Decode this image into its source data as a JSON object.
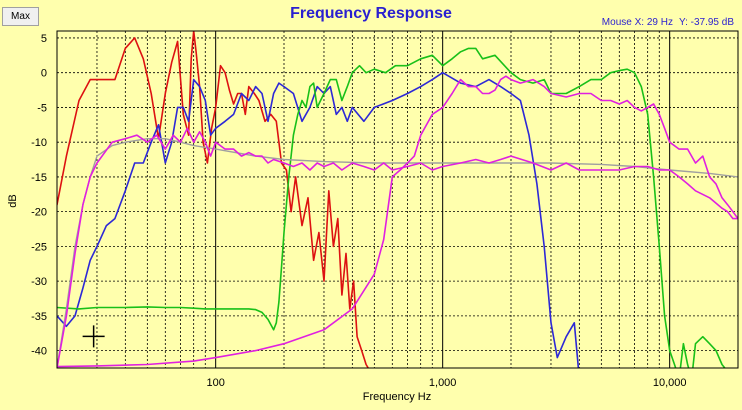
{
  "window": {
    "max_button": "Max",
    "mouse_readout": {
      "x": "Mouse X: 29 Hz",
      "y": "Y: -37.95 dB"
    }
  },
  "chart_data": {
    "type": "line",
    "title": "Frequency Response",
    "xlabel": "Frequency Hz",
    "ylabel": "dB",
    "xscale": "log",
    "xlim": [
      20,
      20000
    ],
    "ylim": [
      -42.5,
      6
    ],
    "yticks": [
      5,
      0,
      -5,
      -10,
      -15,
      -20,
      -25,
      -30,
      -35,
      -40
    ],
    "xticks": [
      {
        "value": 100,
        "label": "100"
      },
      {
        "value": 1000,
        "label": "1,000"
      },
      {
        "value": 10000,
        "label": "10,000"
      }
    ],
    "grid": true,
    "grid_style": "dotted",
    "cursor_marker": {
      "x": 29,
      "y": -37.95
    },
    "colors": {
      "background": "#FFFFAD",
      "title": "#2A1FD0",
      "grid": "#000000"
    },
    "series": [
      {
        "color": "#DD1111",
        "x": [
          20,
          22,
          25,
          28,
          32,
          36,
          40,
          44,
          48,
          52,
          56,
          60,
          64,
          68,
          72,
          76,
          78,
          80,
          82,
          85,
          88,
          92,
          96,
          100,
          105,
          110,
          115,
          120,
          125,
          130,
          135,
          140,
          148,
          155,
          165,
          175,
          185,
          195,
          205,
          215,
          225,
          240,
          255,
          270,
          285,
          300,
          315,
          330,
          345,
          360,
          375,
          390,
          405,
          420,
          440,
          460,
          480
        ],
        "y": [
          -19,
          -12,
          -4,
          -1,
          -1,
          -1,
          3.5,
          5,
          2,
          -3,
          -9.5,
          -3,
          1.5,
          4.5,
          -6,
          -9,
          2,
          6,
          3,
          -2,
          -10,
          -13,
          -8,
          -5,
          1,
          0,
          -2.5,
          -4.5,
          -3,
          -3,
          -6,
          -2,
          -3,
          -4,
          -7,
          -6,
          -7,
          -13,
          -14,
          -20,
          -15,
          -22,
          -18,
          -27,
          -23,
          -30,
          -17,
          -25,
          -21,
          -32,
          -26,
          -34,
          -30,
          -38,
          -40,
          -42,
          -43
        ]
      },
      {
        "color": "#2D28D6",
        "x": [
          20,
          22,
          24,
          26,
          28,
          30,
          33,
          36,
          40,
          44,
          48,
          52,
          56,
          60,
          64,
          68,
          72,
          76,
          80,
          85,
          90,
          95,
          100,
          110,
          120,
          130,
          140,
          150,
          160,
          170,
          180,
          190,
          200,
          220,
          240,
          260,
          280,
          300,
          320,
          340,
          360,
          380,
          400,
          450,
          500,
          600,
          700,
          800,
          900,
          1000,
          1200,
          1400,
          1600,
          1800,
          2000,
          2200,
          2400,
          2600,
          2800,
          3000,
          3200,
          3500,
          3800,
          4000
        ],
        "y": [
          -35,
          -36.5,
          -35,
          -31,
          -27,
          -25,
          -22,
          -21,
          -17,
          -13,
          -13,
          -10,
          -7.5,
          -13,
          -10,
          -5,
          -5,
          -7,
          -1,
          -2,
          -4,
          -9,
          -8,
          -7,
          -6,
          -3,
          -4,
          -2,
          -3,
          -7,
          -3,
          -1.5,
          -2,
          -3,
          -7,
          -5,
          -2,
          -3,
          -2,
          -6,
          -5,
          -7,
          -5,
          -7,
          -5,
          -4,
          -3,
          -2,
          -1,
          0,
          -1.5,
          -2,
          -1,
          -2,
          -3,
          -4,
          -9,
          -16,
          -25,
          -36,
          -41,
          -38,
          -36,
          -44
        ]
      },
      {
        "color": "#19C019",
        "x": [
          20,
          25,
          30,
          40,
          50,
          60,
          70,
          80,
          90,
          100,
          110,
          120,
          130,
          140,
          150,
          160,
          170,
          180,
          185,
          190,
          195,
          200,
          210,
          220,
          230,
          240,
          250,
          260,
          270,
          280,
          300,
          320,
          340,
          360,
          380,
          400,
          430,
          460,
          500,
          560,
          620,
          700,
          800,
          900,
          1000,
          1100,
          1200,
          1300,
          1400,
          1500,
          1700,
          2000,
          2200,
          2500,
          2800,
          3000,
          3500,
          4000,
          4500,
          5000,
          5500,
          6000,
          6500,
          7000,
          7500,
          8000,
          8500,
          9000,
          9500,
          10000,
          10500,
          11000,
          11500,
          12000,
          12500,
          13000,
          14000,
          15000,
          16000,
          17000,
          18000,
          19000
        ],
        "y": [
          -33.8,
          -34,
          -33.8,
          -33.8,
          -33.7,
          -33.8,
          -33.8,
          -33.9,
          -34,
          -34,
          -34,
          -34,
          -34,
          -34,
          -34.1,
          -34.5,
          -35.5,
          -37,
          -36,
          -33,
          -28,
          -23,
          -15,
          -9,
          -6,
          -4,
          -5,
          -2,
          -1.5,
          -5,
          -3,
          -1,
          -1,
          -4,
          -2,
          0,
          1,
          0,
          0.5,
          0,
          1,
          1,
          2,
          2.5,
          1,
          2,
          3,
          3.5,
          3.5,
          2,
          2.5,
          0,
          -1,
          -1.5,
          -1,
          -3,
          -3,
          -2,
          -1,
          -1,
          0,
          0.3,
          0.5,
          0,
          -2,
          -6,
          -15,
          -25,
          -35,
          -40,
          -42,
          -44,
          -39,
          -42,
          -44,
          -39,
          -38,
          -39,
          -40,
          -42,
          -43,
          -43
        ]
      },
      {
        "color": "#A0A0A0",
        "x": [
          20,
          22,
          24,
          26,
          28,
          30,
          35,
          40,
          50,
          60,
          70,
          80,
          100,
          150,
          200,
          300,
          500,
          700,
          1000,
          1500,
          2000,
          3000,
          5000,
          7000,
          10000,
          15000,
          20000
        ],
        "y": [
          -42.5,
          -34,
          -25,
          -19,
          -15,
          -12,
          -10.5,
          -10,
          -9.5,
          -9.5,
          -10,
          -10.5,
          -11,
          -12,
          -12.5,
          -12.8,
          -13,
          -13,
          -13,
          -13,
          -13,
          -13,
          -13.2,
          -13.5,
          -14,
          -14.5,
          -15
        ]
      },
      {
        "color": "#E020E0",
        "x": [
          20,
          22,
          24,
          26,
          28,
          30,
          35,
          40,
          45,
          50,
          55,
          60,
          65,
          70,
          75,
          80,
          85,
          90,
          95,
          100,
          110,
          120,
          130,
          140,
          150,
          160,
          170,
          180,
          200,
          220,
          240,
          260,
          280,
          300,
          330,
          360,
          400,
          450,
          500,
          550,
          600,
          700,
          800,
          900,
          1000,
          1200,
          1400,
          1600,
          1800,
          2000,
          2500,
          3000,
          3500,
          4000,
          5000,
          6000,
          7000,
          8000,
          9000,
          10000,
          11000,
          12000,
          13000,
          15000,
          17000,
          18000,
          19000,
          20000
        ],
        "y": [
          -42.5,
          -35,
          -26,
          -19,
          -15,
          -13,
          -10,
          -9.5,
          -9,
          -10,
          -9,
          -11,
          -9,
          -10,
          -8,
          -10,
          -8.5,
          -10,
          -12,
          -10,
          -11,
          -11,
          -12,
          -11.5,
          -12,
          -12,
          -13,
          -12.5,
          -13,
          -13.5,
          -13,
          -14,
          -13,
          -13.5,
          -13,
          -14,
          -13,
          -13.5,
          -14,
          -13,
          -14,
          -13.5,
          -13,
          -14,
          -13.5,
          -13,
          -12.5,
          -13,
          -12.5,
          -12,
          -13,
          -14,
          -13,
          -14,
          -14,
          -14,
          -13.5,
          -13.5,
          -14,
          -14,
          -15,
          -16,
          -17,
          -18,
          -19.5,
          -20,
          -21,
          -21
        ]
      },
      {
        "color": "#E020E0",
        "x": [
          20,
          30,
          50,
          80,
          100,
          150,
          200,
          300,
          400,
          500,
          550,
          600,
          650,
          700,
          750,
          800,
          900,
          1000,
          1100,
          1200,
          1300,
          1400,
          1500,
          1600,
          1700,
          1800,
          1900,
          2000,
          2200,
          2500,
          2800,
          3000,
          3500,
          4000,
          4500,
          5000,
          5500,
          6000,
          6500,
          7000,
          7500,
          8000,
          8500,
          9000,
          9500,
          10000,
          11000,
          12000,
          13000,
          14000,
          15000,
          16000,
          17000,
          18000,
          19000,
          20000
        ],
        "y": [
          -42.3,
          -42.2,
          -42,
          -41.5,
          -41,
          -40,
          -39,
          -37,
          -34,
          -29,
          -24,
          -15,
          -14,
          -13,
          -12,
          -9,
          -6,
          -5,
          -3,
          -1,
          -2,
          -2,
          -3,
          -3,
          -2.5,
          -1,
          -0.5,
          -1,
          -1.5,
          -1,
          -2,
          -3,
          -3.5,
          -3,
          -3,
          -4,
          -4,
          -4.5,
          -4,
          -5,
          -5.5,
          -5,
          -4.5,
          -6,
          -8,
          -10,
          -11,
          -11,
          -13,
          -12,
          -15,
          -16,
          -18,
          -19,
          -20,
          -21
        ]
      }
    ]
  }
}
